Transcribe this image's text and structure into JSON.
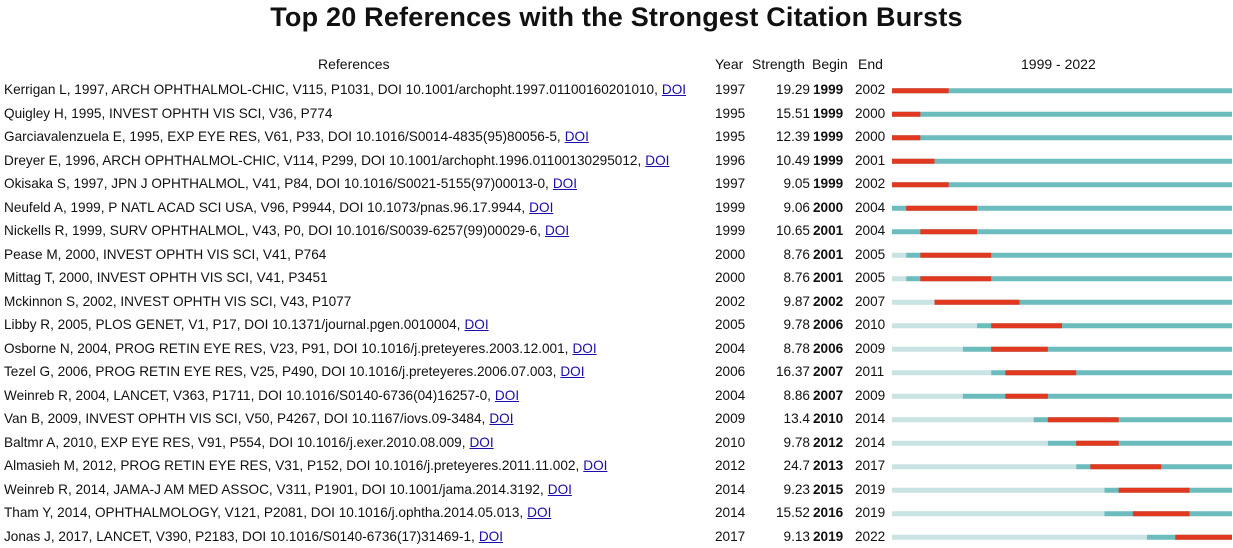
{
  "title": "Top 20 References with the Strongest Citation Bursts",
  "headers": {
    "references": "References",
    "year": "Year",
    "strength": "Strength",
    "begin": "Begin",
    "end": "End",
    "range": "1999 - 2022"
  },
  "colors": {
    "burst": "#e0391f",
    "active": "#6cbcbd",
    "inactive": "#c9e2e4",
    "link": "#1a0dab"
  },
  "rows": [
    {
      "ref": "Kerrigan L, 1997, ARCH OPHTHALMOL-CHIC, V115, P1031, DOI 10.1001/archopht.1997.01100160201010,",
      "doi": "DOI",
      "year": "1997",
      "strength": "19.29",
      "begin": "1999",
      "end": "2002"
    },
    {
      "ref": "Quigley H, 1995, INVEST OPHTH VIS SCI, V36, P774",
      "doi": "",
      "year": "1995",
      "strength": "15.51",
      "begin": "1999",
      "end": "2000"
    },
    {
      "ref": "Garciavalenzuela E, 1995, EXP EYE RES, V61, P33, DOI 10.1016/S0014-4835(95)80056-5,",
      "doi": "DOI",
      "year": "1995",
      "strength": "12.39",
      "begin": "1999",
      "end": "2000"
    },
    {
      "ref": "Dreyer E, 1996, ARCH OPHTHALMOL-CHIC, V114, P299, DOI 10.1001/archopht.1996.01100130295012,",
      "doi": "DOI",
      "year": "1996",
      "strength": "10.49",
      "begin": "1999",
      "end": "2001"
    },
    {
      "ref": "Okisaka S, 1997, JPN J OPHTHALMOL, V41, P84, DOI 10.1016/S0021-5155(97)00013-0,",
      "doi": "DOI",
      "year": "1997",
      "strength": "9.05",
      "begin": "1999",
      "end": "2002"
    },
    {
      "ref": "Neufeld A, 1999, P NATL ACAD SCI USA, V96, P9944, DOI 10.1073/pnas.96.17.9944,",
      "doi": "DOI",
      "year": "1999",
      "strength": "9.06",
      "begin": "2000",
      "end": "2004"
    },
    {
      "ref": "Nickells R, 1999, SURV OPHTHALMOL, V43, P0, DOI 10.1016/S0039-6257(99)00029-6,",
      "doi": "DOI",
      "year": "1999",
      "strength": "10.65",
      "begin": "2001",
      "end": "2004"
    },
    {
      "ref": "Pease M, 2000, INVEST OPHTH VIS SCI, V41, P764",
      "doi": "",
      "year": "2000",
      "strength": "8.76",
      "begin": "2001",
      "end": "2005"
    },
    {
      "ref": "Mittag T, 2000, INVEST OPHTH VIS SCI, V41, P3451",
      "doi": "",
      "year": "2000",
      "strength": "8.76",
      "begin": "2001",
      "end": "2005"
    },
    {
      "ref": "Mckinnon S, 2002, INVEST OPHTH VIS SCI, V43, P1077",
      "doi": "",
      "year": "2002",
      "strength": "9.87",
      "begin": "2002",
      "end": "2007"
    },
    {
      "ref": "Libby R, 2005, PLOS GENET, V1, P17, DOI 10.1371/journal.pgen.0010004,",
      "doi": "DOI",
      "year": "2005",
      "strength": "9.78",
      "begin": "2006",
      "end": "2010"
    },
    {
      "ref": "Osborne N, 2004, PROG RETIN EYE RES, V23, P91, DOI 10.1016/j.preteyeres.2003.12.001,",
      "doi": "DOI",
      "year": "2004",
      "strength": "8.78",
      "begin": "2006",
      "end": "2009"
    },
    {
      "ref": "Tezel G, 2006, PROG RETIN EYE RES, V25, P490, DOI 10.1016/j.preteyeres.2006.07.003,",
      "doi": "DOI",
      "year": "2006",
      "strength": "16.37",
      "begin": "2007",
      "end": "2011"
    },
    {
      "ref": "Weinreb R, 2004, LANCET, V363, P1711, DOI 10.1016/S0140-6736(04)16257-0,",
      "doi": "DOI",
      "year": "2004",
      "strength": "8.86",
      "begin": "2007",
      "end": "2009"
    },
    {
      "ref": "Van B, 2009, INVEST OPHTH VIS SCI, V50, P4267, DOI 10.1167/iovs.09-3484,",
      "doi": "DOI",
      "year": "2009",
      "strength": "13.4",
      "begin": "2010",
      "end": "2014"
    },
    {
      "ref": "Baltmr A, 2010, EXP EYE RES, V91, P554, DOI 10.1016/j.exer.2010.08.009,",
      "doi": "DOI",
      "year": "2010",
      "strength": "9.78",
      "begin": "2012",
      "end": "2014"
    },
    {
      "ref": "Almasieh M, 2012, PROG RETIN EYE RES, V31, P152, DOI 10.1016/j.preteyeres.2011.11.002,",
      "doi": "DOI",
      "year": "2012",
      "strength": "24.7",
      "begin": "2013",
      "end": "2017"
    },
    {
      "ref": "Weinreb R, 2014, JAMA-J AM MED ASSOC, V311, P1901, DOI 10.1001/jama.2014.3192,",
      "doi": "DOI",
      "year": "2014",
      "strength": "9.23",
      "begin": "2015",
      "end": "2019"
    },
    {
      "ref": "Tham Y, 2014, OPHTHALMOLOGY, V121, P2081, DOI 10.1016/j.ophtha.2014.05.013,",
      "doi": "DOI",
      "year": "2014",
      "strength": "15.52",
      "begin": "2016",
      "end": "2019"
    },
    {
      "ref": "Jonas J, 2017, LANCET, V390, P2183, DOI 10.1016/S0140-6736(17)31469-1,",
      "doi": "DOI",
      "year": "2017",
      "strength": "9.13",
      "begin": "2019",
      "end": "2022"
    }
  ],
  "chart_data": {
    "type": "bar",
    "title": "Top 20 References with the Strongest Citation Bursts",
    "range": [
      1999,
      2022
    ],
    "series": [
      {
        "year": 1997,
        "strength": 19.29,
        "begin": 1999,
        "end": 2002
      },
      {
        "year": 1995,
        "strength": 15.51,
        "begin": 1999,
        "end": 2000
      },
      {
        "year": 1995,
        "strength": 12.39,
        "begin": 1999,
        "end": 2000
      },
      {
        "year": 1996,
        "strength": 10.49,
        "begin": 1999,
        "end": 2001
      },
      {
        "year": 1997,
        "strength": 9.05,
        "begin": 1999,
        "end": 2002
      },
      {
        "year": 1999,
        "strength": 9.06,
        "begin": 2000,
        "end": 2004
      },
      {
        "year": 1999,
        "strength": 10.65,
        "begin": 2001,
        "end": 2004
      },
      {
        "year": 2000,
        "strength": 8.76,
        "begin": 2001,
        "end": 2005
      },
      {
        "year": 2000,
        "strength": 8.76,
        "begin": 2001,
        "end": 2005
      },
      {
        "year": 2002,
        "strength": 9.87,
        "begin": 2002,
        "end": 2007
      },
      {
        "year": 2005,
        "strength": 9.78,
        "begin": 2006,
        "end": 2010
      },
      {
        "year": 2004,
        "strength": 8.78,
        "begin": 2006,
        "end": 2009
      },
      {
        "year": 2006,
        "strength": 16.37,
        "begin": 2007,
        "end": 2011
      },
      {
        "year": 2004,
        "strength": 8.86,
        "begin": 2007,
        "end": 2009
      },
      {
        "year": 2009,
        "strength": 13.4,
        "begin": 2010,
        "end": 2014
      },
      {
        "year": 2010,
        "strength": 9.78,
        "begin": 2012,
        "end": 2014
      },
      {
        "year": 2012,
        "strength": 24.7,
        "begin": 2013,
        "end": 2017
      },
      {
        "year": 2014,
        "strength": 9.23,
        "begin": 2015,
        "end": 2019
      },
      {
        "year": 2014,
        "strength": 15.52,
        "begin": 2016,
        "end": 2019
      },
      {
        "year": 2017,
        "strength": 9.13,
        "begin": 2019,
        "end": 2022
      }
    ]
  }
}
